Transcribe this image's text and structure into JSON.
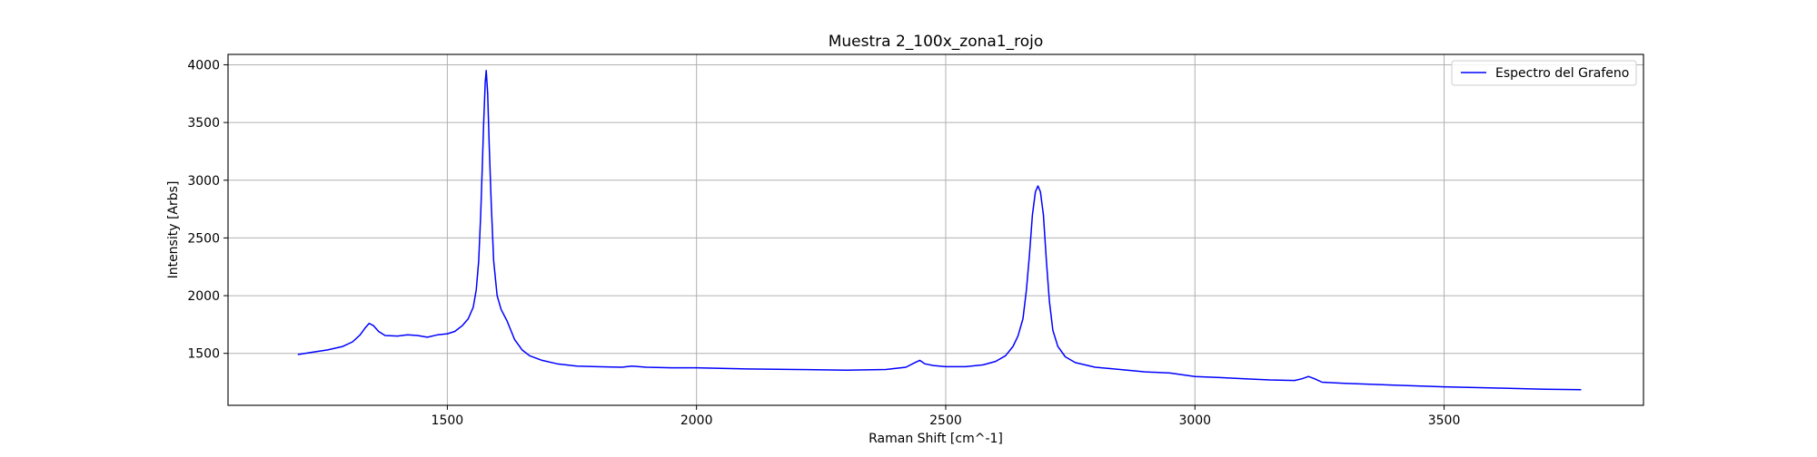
{
  "chart_data": {
    "type": "line",
    "title": "Muestra 2_100x_zona1_rojo",
    "xlabel": "Raman Shift [cm^-1]",
    "ylabel": "Intensity [Arbs]",
    "xlim": [
      1060,
      3900
    ],
    "ylim": [
      1050,
      4090
    ],
    "xticks": [
      1500,
      2000,
      2500,
      3000,
      3500
    ],
    "yticks": [
      1500,
      2000,
      2500,
      3000,
      3500,
      4000
    ],
    "grid": true,
    "legend_position": "top-right",
    "colors": {
      "series": "#0000ff",
      "grid": "#b0b0b0",
      "frame": "#000000"
    },
    "series": [
      {
        "name": "Espectro del Grafeno",
        "color": "#0000ff",
        "points": [
          [
            1200,
            1490
          ],
          [
            1230,
            1510
          ],
          [
            1260,
            1530
          ],
          [
            1290,
            1560
          ],
          [
            1310,
            1600
          ],
          [
            1325,
            1660
          ],
          [
            1335,
            1720
          ],
          [
            1343,
            1760
          ],
          [
            1352,
            1740
          ],
          [
            1362,
            1690
          ],
          [
            1375,
            1655
          ],
          [
            1400,
            1650
          ],
          [
            1420,
            1660
          ],
          [
            1440,
            1655
          ],
          [
            1460,
            1640
          ],
          [
            1480,
            1660
          ],
          [
            1500,
            1670
          ],
          [
            1515,
            1690
          ],
          [
            1530,
            1740
          ],
          [
            1542,
            1800
          ],
          [
            1552,
            1900
          ],
          [
            1558,
            2050
          ],
          [
            1563,
            2300
          ],
          [
            1567,
            2700
          ],
          [
            1570,
            3100
          ],
          [
            1573,
            3500
          ],
          [
            1576,
            3850
          ],
          [
            1578,
            3950
          ],
          [
            1581,
            3750
          ],
          [
            1584,
            3300
          ],
          [
            1588,
            2800
          ],
          [
            1593,
            2300
          ],
          [
            1600,
            2000
          ],
          [
            1608,
            1880
          ],
          [
            1620,
            1780
          ],
          [
            1635,
            1620
          ],
          [
            1650,
            1530
          ],
          [
            1665,
            1480
          ],
          [
            1690,
            1440
          ],
          [
            1720,
            1410
          ],
          [
            1760,
            1390
          ],
          [
            1800,
            1385
          ],
          [
            1850,
            1380
          ],
          [
            1870,
            1390
          ],
          [
            1900,
            1380
          ],
          [
            1950,
            1375
          ],
          [
            2000,
            1375
          ],
          [
            2100,
            1365
          ],
          [
            2200,
            1360
          ],
          [
            2300,
            1355
          ],
          [
            2380,
            1360
          ],
          [
            2420,
            1380
          ],
          [
            2438,
            1420
          ],
          [
            2448,
            1440
          ],
          [
            2458,
            1410
          ],
          [
            2475,
            1395
          ],
          [
            2500,
            1385
          ],
          [
            2540,
            1385
          ],
          [
            2575,
            1400
          ],
          [
            2600,
            1430
          ],
          [
            2620,
            1480
          ],
          [
            2635,
            1560
          ],
          [
            2645,
            1650
          ],
          [
            2655,
            1800
          ],
          [
            2662,
            2050
          ],
          [
            2668,
            2350
          ],
          [
            2674,
            2700
          ],
          [
            2680,
            2900
          ],
          [
            2685,
            2950
          ],
          [
            2690,
            2900
          ],
          [
            2696,
            2700
          ],
          [
            2702,
            2300
          ],
          [
            2708,
            1950
          ],
          [
            2715,
            1700
          ],
          [
            2725,
            1560
          ],
          [
            2740,
            1470
          ],
          [
            2760,
            1420
          ],
          [
            2800,
            1380
          ],
          [
            2850,
            1360
          ],
          [
            2900,
            1340
          ],
          [
            2950,
            1330
          ],
          [
            3000,
            1300
          ],
          [
            3050,
            1290
          ],
          [
            3100,
            1280
          ],
          [
            3150,
            1270
          ],
          [
            3200,
            1265
          ],
          [
            3215,
            1280
          ],
          [
            3228,
            1300
          ],
          [
            3240,
            1280
          ],
          [
            3255,
            1250
          ],
          [
            3300,
            1240
          ],
          [
            3400,
            1225
          ],
          [
            3500,
            1210
          ],
          [
            3600,
            1200
          ],
          [
            3700,
            1190
          ],
          [
            3775,
            1185
          ]
        ]
      }
    ]
  }
}
